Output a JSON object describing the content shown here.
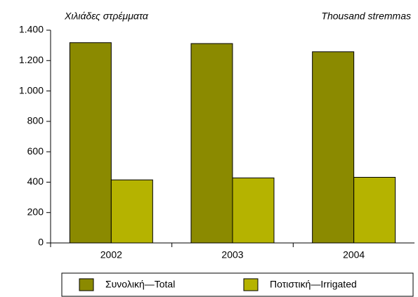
{
  "chart_data": {
    "type": "bar",
    "annotations": [
      "Χιλιάδες στρέμματα",
      "Thousand stremmas"
    ],
    "categories": [
      "2002",
      "2003",
      "2004"
    ],
    "series": [
      {
        "name": "Συνολική—Total",
        "color": "#8b8a00",
        "values": [
          1318,
          1312,
          1258
        ]
      },
      {
        "name": "Ποτιστική—Irrigated",
        "color": "#b5b300",
        "values": [
          415,
          428,
          432
        ]
      }
    ],
    "ylim": [
      0,
      1400
    ],
    "yticks": [
      0,
      200,
      400,
      600,
      800,
      {
        "value": 1000,
        "label": "1.000"
      },
      {
        "value": 1200,
        "label": "1.200"
      },
      {
        "value": 1400,
        "label": "1.400"
      }
    ],
    "grid": false,
    "legend": "bottom"
  }
}
